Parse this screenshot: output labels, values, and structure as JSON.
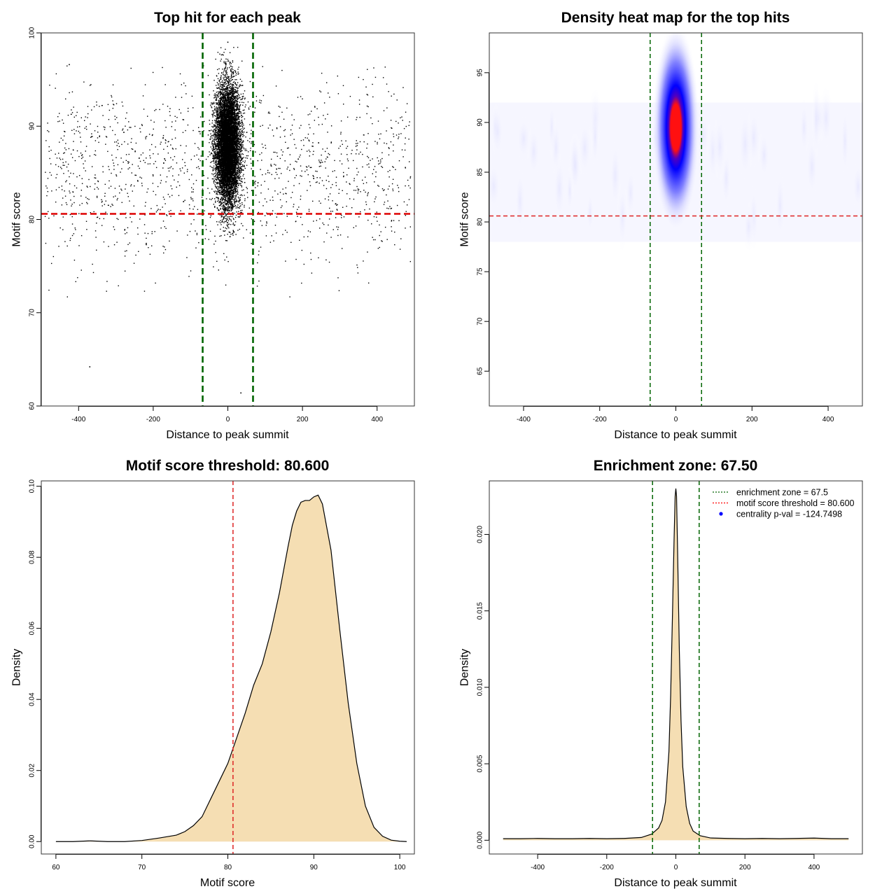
{
  "chart_data": [
    {
      "type": "scatter",
      "title": "Top hit for each peak",
      "xlabel": "Distance to peak summit",
      "ylabel": "Motif score",
      "xlim": [
        -500,
        500
      ],
      "ylim": [
        60,
        100
      ],
      "xticks": [
        -400,
        -200,
        0,
        200,
        400
      ],
      "yticks": [
        60,
        70,
        80,
        90,
        100
      ],
      "vlines": [
        -67.5,
        67.5
      ],
      "hline": 80.6,
      "points_summary": {
        "central_cluster": {
          "x_center": 0,
          "x_sd": 16,
          "y_center": 88,
          "y_sd": 3.2,
          "n": 9000
        },
        "background": {
          "x_range": [
            -490,
            490
          ],
          "y_range": [
            71,
            96.5
          ],
          "n": 1500
        },
        "outliers": [
          {
            "x": -370,
            "y": 64.2
          },
          {
            "x": 35,
            "y": 61.4
          },
          {
            "x": -425,
            "y": 96.6
          },
          {
            "x": 0,
            "y": 99.0
          }
        ]
      }
    },
    {
      "type": "heatmap",
      "title": "Density heat map for the top hits",
      "xlabel": "Distance to peak summit",
      "ylabel": "Motif score",
      "xlim": [
        -490,
        490
      ],
      "ylim": [
        61.5,
        99
      ],
      "xticks": [
        -400,
        -200,
        0,
        200,
        400
      ],
      "yticks": [
        65,
        70,
        75,
        80,
        85,
        90,
        95
      ],
      "vlines": [
        -67.5,
        67.5
      ],
      "hline": 80.6,
      "peak": {
        "x": 0,
        "y": 89.5
      },
      "colors": [
        "#ffffff",
        "#0000ff",
        "#ff0000"
      ]
    },
    {
      "type": "area",
      "title": "Motif score threshold: 80.600",
      "xlabel": "Motif score",
      "ylabel": "Density",
      "xlim": [
        58.3,
        101.7
      ],
      "ylim": [
        -0.0035,
        0.1015
      ],
      "xticks": [
        60,
        70,
        80,
        90,
        100
      ],
      "yticks": [
        0.0,
        0.02,
        0.04,
        0.06,
        0.08,
        0.1
      ],
      "ytick_labels": [
        "0.00",
        "0.02",
        "0.04",
        "0.06",
        "0.08",
        "0.10"
      ],
      "vline": 80.6,
      "x": [
        60,
        62,
        64,
        66,
        68,
        70,
        72,
        74,
        75,
        76,
        77,
        78,
        79,
        80,
        81,
        82,
        83,
        84,
        85,
        86,
        87,
        87.5,
        88,
        88.5,
        89,
        89.5,
        90,
        90.5,
        91,
        92,
        93,
        94,
        95,
        96,
        97,
        98,
        99,
        100,
        100.8
      ],
      "y": [
        0.0,
        0.0,
        0.0002,
        0.0,
        0.0,
        0.0003,
        0.001,
        0.0018,
        0.0028,
        0.0045,
        0.007,
        0.012,
        0.017,
        0.022,
        0.029,
        0.036,
        0.044,
        0.05,
        0.059,
        0.07,
        0.083,
        0.089,
        0.093,
        0.0955,
        0.096,
        0.096,
        0.097,
        0.0975,
        0.095,
        0.082,
        0.06,
        0.039,
        0.022,
        0.01,
        0.004,
        0.0015,
        0.0004,
        0.0001,
        0.0
      ]
    },
    {
      "type": "area",
      "title": "Enrichment zone: 67.50",
      "xlabel": "Distance to peak summit",
      "ylabel": "Density",
      "xlim": [
        -540,
        540
      ],
      "ylim": [
        -0.0009,
        0.0235
      ],
      "xticks": [
        -400,
        -200,
        0,
        200,
        400
      ],
      "yticks": [
        0.0,
        0.005,
        0.01,
        0.015,
        0.02
      ],
      "ytick_labels": [
        "0.000",
        "0.005",
        "0.010",
        "0.015",
        "0.020"
      ],
      "vlines": [
        -67.5,
        67.5
      ],
      "x": [
        -500,
        -450,
        -400,
        -350,
        -300,
        -250,
        -200,
        -150,
        -100,
        -70,
        -50,
        -40,
        -30,
        -20,
        -15,
        -10,
        -5,
        -2,
        0,
        2,
        5,
        10,
        15,
        20,
        30,
        40,
        50,
        70,
        100,
        150,
        200,
        250,
        300,
        350,
        400,
        450,
        500
      ],
      "y": [
        0.0001,
        0.0001,
        0.00012,
        0.0001,
        0.0001,
        0.00012,
        0.0001,
        0.00012,
        0.00018,
        0.0004,
        0.0008,
        0.0013,
        0.0025,
        0.0058,
        0.0095,
        0.0145,
        0.0198,
        0.0225,
        0.023,
        0.0225,
        0.019,
        0.0125,
        0.0078,
        0.0048,
        0.0022,
        0.0011,
        0.0006,
        0.0003,
        0.00015,
        0.00012,
        0.0001,
        0.00012,
        0.0001,
        0.00012,
        0.00014,
        0.0001,
        0.0001
      ],
      "legend": {
        "position": "top-right",
        "entries": [
          {
            "label": "enrichment zone = 67.5",
            "color": "#006400",
            "style": "dotted-line"
          },
          {
            "label": "motif score threshold = 80.600",
            "color": "#ff0000",
            "style": "dotted-line"
          },
          {
            "label": "centrality p-val = -124.7498",
            "color": "#0000ff",
            "style": "point"
          }
        ]
      }
    }
  ]
}
